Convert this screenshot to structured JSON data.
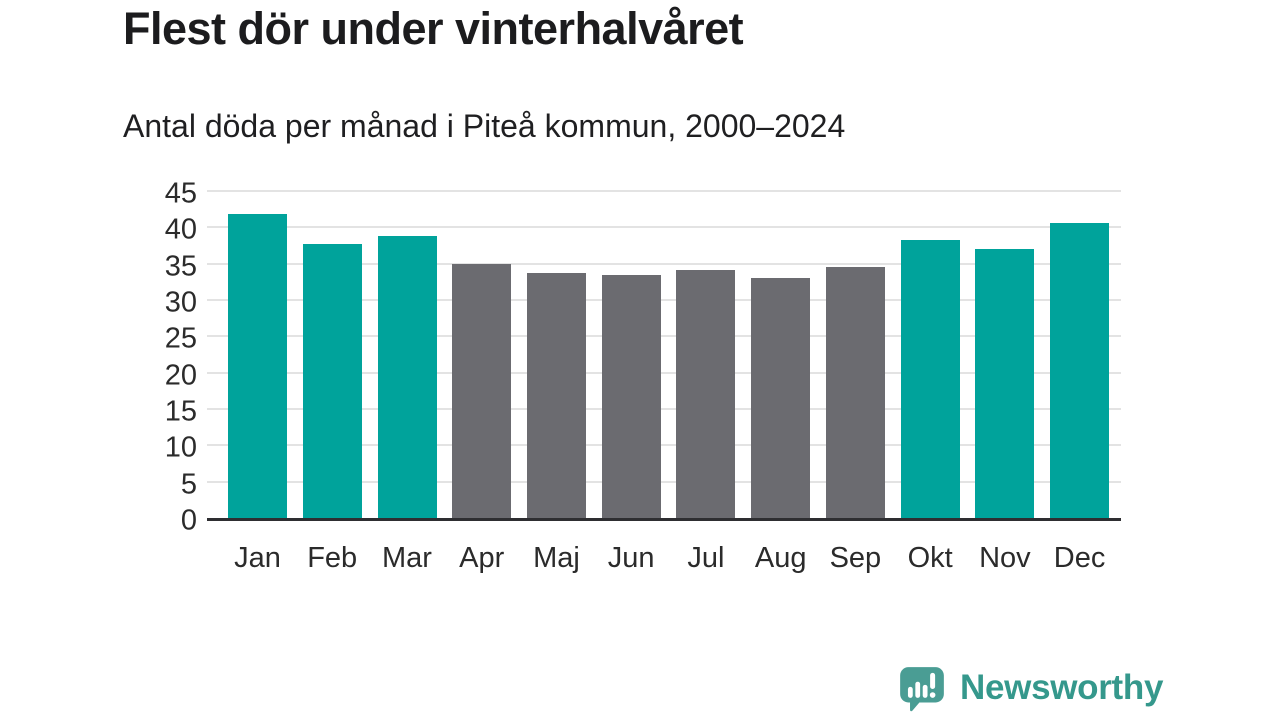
{
  "chart_data": {
    "type": "bar",
    "title": "Flest dör under vinterhalvåret",
    "subtitle": "Antal döda per månad i Piteå kommun, 2000–2024",
    "categories": [
      "Jan",
      "Feb",
      "Mar",
      "Apr",
      "Maj",
      "Jun",
      "Jul",
      "Aug",
      "Sep",
      "Okt",
      "Nov",
      "Dec"
    ],
    "values": [
      41.8,
      37.7,
      38.8,
      35.0,
      33.7,
      33.5,
      34.1,
      33.0,
      34.6,
      38.2,
      37.0,
      40.6
    ],
    "point_colors": [
      "#00a39b",
      "#00a39b",
      "#00a39b",
      "#6b6b70",
      "#6b6b70",
      "#6b6b70",
      "#6b6b70",
      "#6b6b70",
      "#6b6b70",
      "#00a39b",
      "#00a39b",
      "#00a39b"
    ],
    "highlight_color": "#00a39b",
    "muted_color": "#6b6b70",
    "xlabel": "",
    "ylabel": "",
    "ylim": [
      0,
      45
    ],
    "yticks": [
      0,
      5,
      10,
      15,
      20,
      25,
      30,
      35,
      40,
      45
    ],
    "grid": true,
    "gridline_color": "#e3e3e3",
    "axis_line_color": "#2e2e31",
    "legend": "none"
  },
  "footer": {
    "brand": "Newsworthy",
    "brand_color": "#35988c",
    "icon": "newsworthy-speech-bubble-chart-icon",
    "icon_color": "#4a9d94"
  }
}
